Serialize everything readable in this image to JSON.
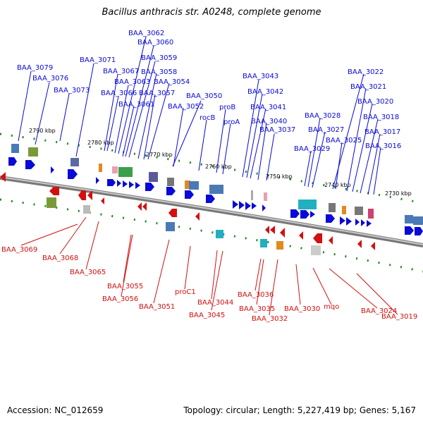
{
  "title": "Bacillus anthracis str. A0248, complete genome",
  "accession": "Accession: NC_012659",
  "summary": "Topology: circular; Length: 5,227,419 bp; Genes: 5,167",
  "colors": {
    "forward": "#0a0ad6",
    "reverse": "#d21010",
    "backbone": "#8a8a8a",
    "tick": "#1a8a1a"
  },
  "ticks": [
    "2790 kbp",
    "2780 kbp",
    "2770 kbp",
    "2760 kbp",
    "2750 kbp",
    "2740 kbp",
    "2730 kbp"
  ],
  "top_labels": [
    "BAA_3062",
    "BAA_3060",
    "BAA_3059",
    "BAA_3071",
    "BAA_3079",
    "BAA_3067",
    "BAA_3058",
    "BAA_3076",
    "BAA_3063",
    "BAA_3054",
    "BAA_3073",
    "BAA_3066",
    "BAA_3057",
    "BAA_3061",
    "BAA_3050",
    "BAA_3052",
    "rocB",
    "proB",
    "proA",
    "BAA_3043",
    "BAA_3042",
    "BAA_3041",
    "BAA_3040",
    "BAA_3037",
    "BAA_3022",
    "BAA_3021",
    "BAA_3020",
    "BAA_3028",
    "BAA_3018",
    "BAA_3027",
    "BAA_3017",
    "BAA_3025",
    "BAA_3029",
    "BAA_3016"
  ],
  "bottom_labels": [
    "BAA_3069",
    "BAA_3068",
    "BAA_3065",
    "BAA_3055",
    "BAA_3056",
    "BAA_3051",
    "proC1",
    "BAA_3044",
    "BAA_3045",
    "BAA_3036",
    "BAA_3035",
    "BAA_3032",
    "BAA_3030",
    "mqo",
    "BAA_3024",
    "BAA_3019"
  ]
}
